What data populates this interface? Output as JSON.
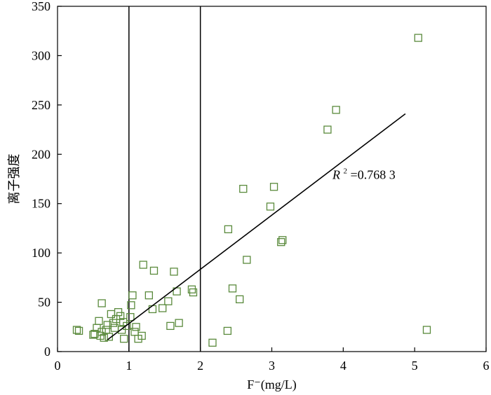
{
  "chart_data": {
    "type": "scatter",
    "title": "",
    "xlabel": "F⁻(mg/L)",
    "ylabel": "离子强度",
    "xlim": [
      0,
      6
    ],
    "ylim": [
      0,
      350
    ],
    "x_ticks": [
      0,
      1,
      2,
      3,
      4,
      5,
      6
    ],
    "y_ticks": [
      0,
      50,
      100,
      150,
      200,
      250,
      300,
      350
    ],
    "grid": false,
    "legend": "none",
    "marker": "open-square",
    "marker_color": "#5a8a3c",
    "reference_lines_x": [
      1,
      2
    ],
    "trendline": {
      "x": [
        0.7,
        4.87
      ],
      "y": [
        12,
        241
      ]
    },
    "annotation": {
      "prefix": "R",
      "superscript": "2",
      "value": "=0.768 3"
    },
    "points": [
      [
        0.27,
        22
      ],
      [
        0.3,
        21
      ],
      [
        0.5,
        17
      ],
      [
        0.52,
        18
      ],
      [
        0.55,
        24
      ],
      [
        0.58,
        31
      ],
      [
        0.6,
        16
      ],
      [
        0.62,
        20
      ],
      [
        0.62,
        49
      ],
      [
        0.65,
        14
      ],
      [
        0.68,
        22
      ],
      [
        0.7,
        27
      ],
      [
        0.72,
        15
      ],
      [
        0.75,
        38
      ],
      [
        0.78,
        29
      ],
      [
        0.8,
        24
      ],
      [
        0.82,
        33
      ],
      [
        0.85,
        40
      ],
      [
        0.88,
        36
      ],
      [
        0.9,
        22
      ],
      [
        0.92,
        30
      ],
      [
        0.93,
        13
      ],
      [
        0.97,
        26
      ],
      [
        1.02,
        35
      ],
      [
        1.03,
        47
      ],
      [
        1.05,
        57
      ],
      [
        1.08,
        20
      ],
      [
        1.1,
        25
      ],
      [
        1.13,
        13
      ],
      [
        1.18,
        16
      ],
      [
        1.2,
        88
      ],
      [
        1.28,
        57
      ],
      [
        1.33,
        43
      ],
      [
        1.35,
        82
      ],
      [
        1.47,
        44
      ],
      [
        1.55,
        51
      ],
      [
        1.58,
        26
      ],
      [
        1.63,
        81
      ],
      [
        1.67,
        61
      ],
      [
        1.7,
        29
      ],
      [
        1.88,
        63
      ],
      [
        1.9,
        60
      ],
      [
        2.17,
        9
      ],
      [
        2.38,
        21
      ],
      [
        2.39,
        124
      ],
      [
        2.45,
        64
      ],
      [
        2.55,
        53
      ],
      [
        2.6,
        165
      ],
      [
        2.65,
        93
      ],
      [
        2.98,
        147
      ],
      [
        3.03,
        167
      ],
      [
        3.13,
        111
      ],
      [
        3.15,
        113
      ],
      [
        3.78,
        225
      ],
      [
        3.9,
        245
      ],
      [
        5.05,
        318
      ],
      [
        5.17,
        22
      ]
    ]
  }
}
